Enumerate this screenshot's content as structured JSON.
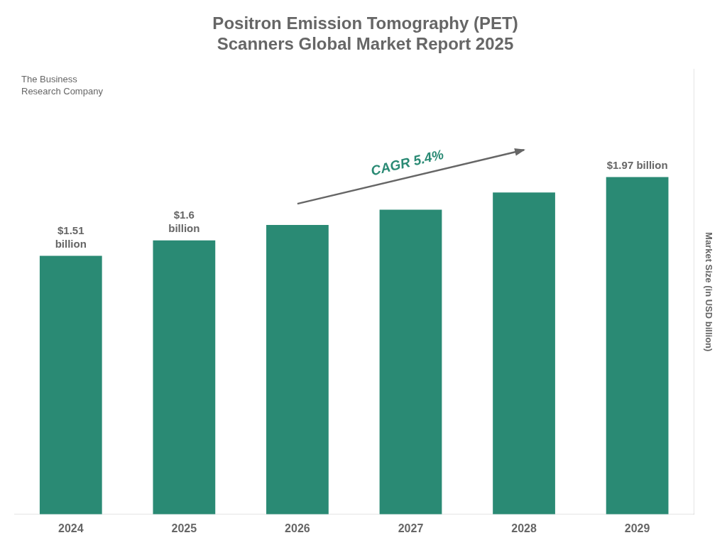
{
  "chart_data": {
    "type": "bar",
    "title": "Positron Emission Tomography (PET)\nScanners Global Market Report 2025",
    "categories": [
      "2024",
      "2025",
      "2026",
      "2027",
      "2028",
      "2029"
    ],
    "values": [
      1.51,
      1.6,
      1.69,
      1.78,
      1.88,
      1.97
    ],
    "color": "#2a8a74",
    "y_label": "Market Size (in USD billion)",
    "ylim": [
      0,
      2.6
    ],
    "grid": false,
    "tick_labels": "x",
    "annotations": [
      {
        "text": "$1.51\nbillion",
        "category": "2024"
      },
      {
        "text": "$1.6\nbillion",
        "category": "2025"
      },
      {
        "text": "$1.97 billion",
        "category": "2029"
      },
      {
        "text": "CAGR 5.4%",
        "arrow": true
      },
      {
        "text": "The Business\nResearch Company"
      }
    ]
  }
}
